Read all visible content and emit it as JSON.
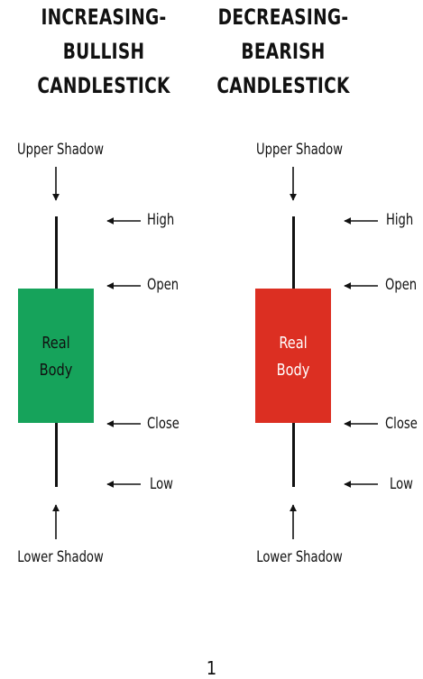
{
  "bullish": {
    "title_lines": [
      "INCREASING-",
      "BULLISH",
      "CANDLESTICK"
    ],
    "upper_shadow": "Upper Shadow",
    "lower_shadow": "Lower Shadow",
    "high": "High",
    "open": "Open",
    "close": "Close",
    "low": "Low",
    "body_lines": [
      "Real",
      "Body"
    ],
    "body_color": "#16a35b",
    "body_text_color": "#111111"
  },
  "bearish": {
    "title_lines": [
      "DECREASING-",
      "BEARISH",
      "CANDLESTICK"
    ],
    "upper_shadow": "Upper Shadow",
    "lower_shadow": "Lower Shadow",
    "high": "High",
    "open": "Open",
    "close": "Close",
    "low": "Low",
    "body_lines": [
      "Real",
      "Body"
    ],
    "body_color": "#dc2f22",
    "body_text_color": "#ffffff"
  },
  "page_number": "1"
}
